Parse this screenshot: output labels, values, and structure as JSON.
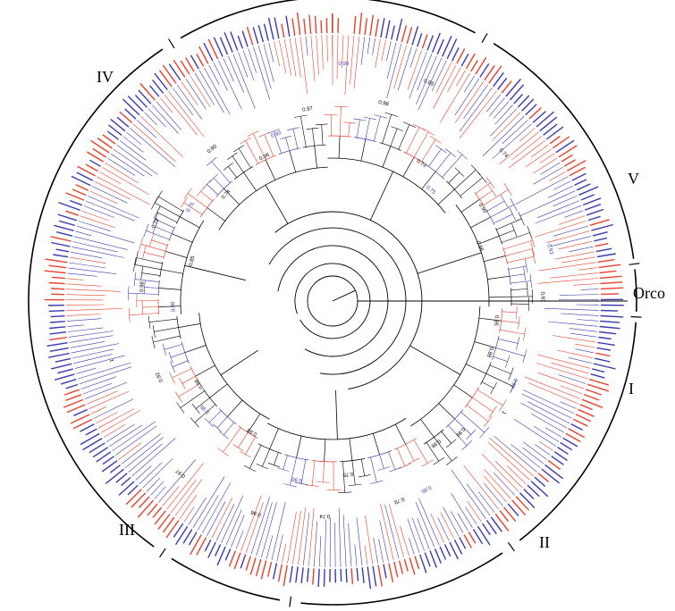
{
  "clades": [
    {
      "id": "I",
      "label": "I"
    },
    {
      "id": "II",
      "label": "II"
    },
    {
      "id": "III",
      "label": "III"
    },
    {
      "id": "IV",
      "label": "IV"
    },
    {
      "id": "V",
      "label": "V"
    },
    {
      "id": "Orco",
      "label": "Orco"
    }
  ],
  "support_values": [
    "0.99",
    "0.98",
    "0.85",
    "0.79",
    "0.75",
    "0.74",
    "0.90",
    "0.96",
    "0.93",
    "0.97",
    "0.95",
    "0.88",
    "0.92",
    "1"
  ],
  "colors": {
    "species_a": "#e8402a",
    "species_b": "#3a3ab0",
    "backbone": "#000000"
  }
}
